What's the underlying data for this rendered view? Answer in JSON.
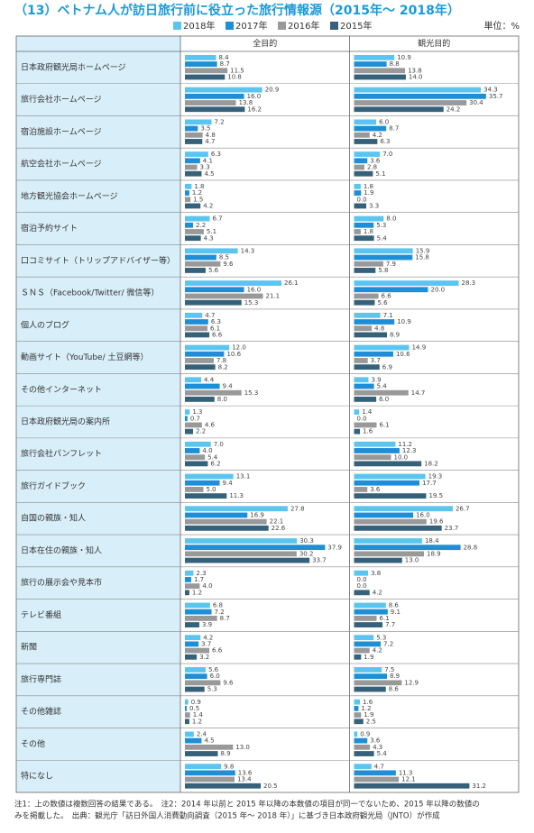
{
  "chart_data": {
    "type": "bar",
    "orientation": "horizontal",
    "title": "（13）ベトナム人が訪日旅行前に役立った旅行情報源（2015年～ 2018年）",
    "unit_label": "単位：%",
    "series": [
      {
        "name": "2018年",
        "color": "#5bc5ef"
      },
      {
        "name": "2017年",
        "color": "#1e8fd6"
      },
      {
        "name": "2016年",
        "color": "#999999"
      },
      {
        "name": "2015年",
        "color": "#35617a"
      }
    ],
    "categories": [
      "日本政府観光局ホームページ",
      "旅行会社ホームページ",
      "宿泊施設ホームページ",
      "航空会社ホームページ",
      "地方観光協会ホームページ",
      "宿泊予約サイト",
      "口コミサイト（トリップアドバイザー等）",
      "ＳＮＳ（Facebook/Twitter/ 微信等）",
      "個人のブログ",
      "動画サイト（YouTube/ 土豆網等）",
      "その他インターネット",
      "日本政府観光局の案内所",
      "旅行会社パンフレット",
      "旅行ガイドブック",
      "自国の親族・知人",
      "日本在住の親族・知人",
      "旅行の展示会や見本市",
      "テレビ番組",
      "新聞",
      "旅行専門誌",
      "その他雑誌",
      "その他",
      "特になし"
    ],
    "panels": [
      {
        "title": "全目的",
        "values": [
          [
            8.4,
            20.9,
            7.2,
            6.3,
            1.8,
            6.7,
            14.3,
            26.1,
            4.7,
            12.0,
            4.4,
            1.3,
            7.0,
            13.1,
            27.8,
            30.3,
            2.3,
            6.8,
            4.2,
            5.6,
            0.9,
            2.4,
            9.8
          ],
          [
            8.7,
            16.0,
            3.5,
            4.1,
            1.2,
            2.2,
            8.5,
            16.0,
            6.3,
            10.6,
            9.4,
            0.7,
            4.0,
            9.4,
            16.9,
            37.9,
            1.7,
            7.2,
            3.7,
            6.0,
            0.5,
            4.5,
            13.6
          ],
          [
            11.5,
            13.8,
            4.8,
            3.3,
            1.5,
            5.1,
            9.6,
            21.1,
            6.1,
            7.8,
            15.3,
            4.6,
            5.4,
            5.0,
            22.1,
            30.2,
            4.0,
            8.7,
            6.6,
            9.6,
            1.4,
            13.0,
            13.4
          ],
          [
            10.8,
            16.2,
            4.7,
            4.5,
            4.2,
            4.3,
            5.6,
            15.3,
            6.6,
            8.2,
            8.0,
            2.2,
            6.2,
            11.3,
            22.6,
            33.7,
            1.2,
            3.9,
            3.2,
            5.3,
            1.2,
            8.9,
            20.5
          ]
        ],
        "value_labels": [
          [
            "8.4",
            "20.9",
            "7.2",
            "6.3",
            "1.8",
            "6.7",
            "14.3",
            "26.1",
            "4.7",
            "12.0",
            "4.4",
            "1.3",
            "7.0",
            "13.1",
            "27.8",
            "30.3",
            "2.3",
            "6.8",
            "4.2",
            "5.6",
            "0.9",
            "2.4",
            "9.8"
          ],
          [
            "8.7",
            "16.0",
            "3.5",
            "4.1",
            "1.2",
            "2.2",
            "8.5",
            "16.0",
            "6.3",
            "10.6",
            "9.4",
            "0.7",
            "4.0",
            "9.4",
            "16.9",
            "37.9",
            "1.7",
            "7.2",
            "3.7",
            "6.0",
            "0.5",
            "4.5",
            "13.6"
          ],
          [
            "11.5",
            "13.8",
            "4.8",
            "3.3",
            "1.5",
            "5.1",
            "9.6",
            "21.1",
            "6.1",
            "7.8",
            "15.3",
            "4.6",
            "5.4",
            "5.0",
            "22.1",
            "30.2",
            "4.0",
            "8.7",
            "6.6",
            "9.6",
            "1.4",
            "13.0",
            "13.4"
          ],
          [
            "10.8",
            "16.2",
            "4.7",
            "4.5",
            "4.2",
            "4.3",
            "5.6",
            "15.3",
            "6.6",
            "8.2",
            "8.0",
            "2.2",
            "6.2",
            "11.3",
            "22.6",
            "33.7",
            "1.2",
            "3.9",
            "3.2",
            "5.3",
            "1.2",
            "8.9",
            "20.5"
          ]
        ]
      },
      {
        "title": "観光目的",
        "values": [
          [
            10.9,
            34.3,
            6.0,
            7.0,
            1.8,
            8.0,
            15.9,
            28.3,
            7.1,
            14.9,
            3.9,
            1.4,
            11.2,
            19.3,
            26.7,
            18.4,
            3.8,
            8.6,
            5.3,
            7.5,
            1.6,
            0.9,
            4.7
          ],
          [
            8.8,
            35.7,
            8.7,
            3.6,
            1.9,
            5.3,
            15.8,
            20.0,
            10.9,
            10.6,
            5.4,
            0.0,
            12.3,
            17.7,
            16.0,
            28.8,
            0.0,
            9.1,
            7.2,
            8.9,
            1.2,
            3.6,
            11.3
          ],
          [
            13.8,
            30.4,
            4.2,
            2.8,
            0.0,
            1.8,
            7.9,
            6.6,
            4.8,
            3.7,
            14.7,
            6.1,
            10.0,
            3.6,
            19.6,
            18.9,
            0.0,
            6.1,
            4.2,
            12.9,
            1.9,
            4.3,
            12.1
          ],
          [
            14.0,
            24.2,
            6.3,
            5.1,
            3.3,
            5.4,
            5.8,
            5.6,
            8.9,
            6.9,
            6.0,
            1.6,
            18.2,
            19.5,
            23.7,
            13.0,
            4.2,
            7.7,
            1.9,
            8.6,
            2.5,
            5.4,
            31.2
          ]
        ],
        "value_labels": [
          [
            "10.9",
            "34.3",
            "6.0",
            "7.0",
            "1.8",
            "8.0",
            "15.9",
            "28.3",
            "7.1",
            "14.9",
            "3.9",
            "1.4",
            "11.2",
            "19.3",
            "26.7",
            "18.4",
            "3.8",
            "8.6",
            "5.3",
            "7.5",
            "1.6",
            "0.9",
            "4.7"
          ],
          [
            "8.8",
            "35.7",
            "8.7",
            "3.6",
            "1.9",
            "5.3",
            "15.8",
            "20.0",
            "10.9",
            "10.6",
            "5.4",
            "0.0",
            "12.3",
            "17.7",
            "16.0",
            "28.8",
            "0.0",
            "9.1",
            "7.2",
            "8.9",
            "1.2",
            "3.6",
            "11.3"
          ],
          [
            "13.8",
            "30.4",
            "4.2",
            "2.8",
            "0.0",
            "1.8",
            "7.9",
            "6.6",
            "4.8",
            "3.7",
            "14.7",
            "6.1",
            "10.0",
            "3.6",
            "19.6",
            "18.9",
            "0.0",
            "6.1",
            "4.2",
            "12.9",
            "1.9",
            "4.3",
            "12.1"
          ],
          [
            "14.0",
            "24.2",
            "6.3",
            "5.1",
            "3.3",
            "5.4",
            "5.8",
            "5.6",
            "8.9",
            "6.9",
            "6.0",
            "1.6",
            "18.2",
            "19.5",
            "23.7",
            "13.0",
            "4.2",
            "7.7",
            "1.9",
            "8.6",
            "2.5",
            "5.4",
            "31.2"
          ]
        ]
      }
    ],
    "notes": [
      "注1：上の数値は複数回答の結果である。　注2：2014 年以前と 2015 年以降の本数値の項目が同一でないため、2015 年以降の数値の",
      "みを掲載した。　出典：観光庁「訪日外国人消費動向調査（2015 年～ 2018 年）」に基づき日本政府観光局（JNTO）が作成"
    ]
  }
}
